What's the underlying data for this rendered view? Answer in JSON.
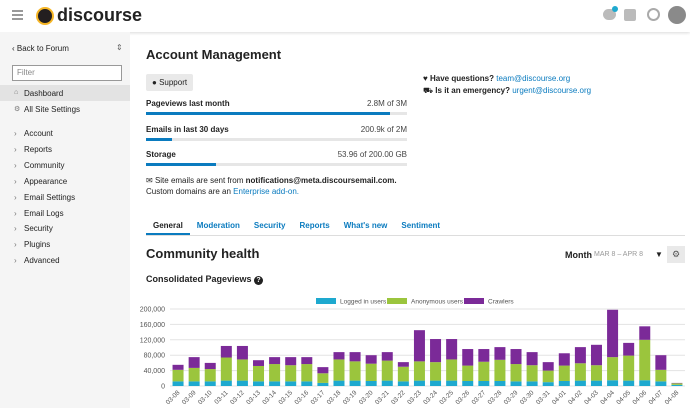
{
  "header": {
    "brand": "discourse"
  },
  "sidebar": {
    "back": "Back to Forum",
    "filter_placeholder": "Filter",
    "top_items": [
      "Dashboard",
      "All Site Settings"
    ],
    "items": [
      "Account",
      "Reports",
      "Community",
      "Appearance",
      "Email Settings",
      "Email Logs",
      "Security",
      "Plugins",
      "Advanced"
    ]
  },
  "account": {
    "title": "Account Management",
    "support": "Support",
    "questions": {
      "label": "Have questions?",
      "email": "team@discourse.org"
    },
    "emergency": {
      "label": "Is it an emergency?",
      "email": "urgent@discourse.org"
    },
    "meters": [
      {
        "name": "Pageviews last month",
        "label": "2.8M of 3M",
        "value": 2800000,
        "limit": 3000000
      },
      {
        "name": "Emails in last 30 days",
        "label": "200.9k of 2M",
        "value": 200900,
        "limit": 2000000
      },
      {
        "name": "Storage",
        "label": "53.96 of 200.00 GB",
        "value": 53.96,
        "limit": 200
      }
    ],
    "email_note": {
      "prefix": "Site emails are sent from",
      "address": "notifications@meta.discoursemail.com.",
      "line2": "Custom domains are an",
      "link": "Enterprise add-on."
    }
  },
  "tabs": [
    "General",
    "Moderation",
    "Security",
    "Reports",
    "What's new",
    "Sentiment"
  ],
  "health": {
    "title": "Community health",
    "period": "Month",
    "range": "MAR 8 – APR 8"
  },
  "chart_data": {
    "type": "bar",
    "stacked": true,
    "title": "Consolidated Pageviews",
    "categories": [
      "03-08",
      "03-09",
      "03-10",
      "03-11",
      "03-12",
      "03-13",
      "03-14",
      "03-15",
      "03-16",
      "03-17",
      "03-18",
      "03-19",
      "03-20",
      "03-21",
      "03-22",
      "03-23",
      "03-24",
      "03-25",
      "03-26",
      "03-27",
      "03-28",
      "03-29",
      "03-30",
      "03-31",
      "04-01",
      "04-02",
      "04-03",
      "04-04",
      "04-05",
      "04-06",
      "04-07",
      "04-08"
    ],
    "series": [
      {
        "name": "Logged in users",
        "color": "#1ea9cf",
        "values": [
          12000,
          12000,
          12000,
          14000,
          14000,
          12000,
          12000,
          12000,
          12000,
          8000,
          14000,
          14000,
          13000,
          14000,
          12000,
          14000,
          14000,
          14000,
          13000,
          13000,
          13000,
          12000,
          12000,
          10000,
          13000,
          14000,
          14000,
          15000,
          14000,
          15000,
          12000,
          3000
        ]
      },
      {
        "name": "Anonymous users",
        "color": "#9bc53d",
        "values": [
          30000,
          35000,
          32000,
          60000,
          55000,
          40000,
          45000,
          42000,
          45000,
          25000,
          55000,
          50000,
          45000,
          52000,
          38000,
          50000,
          48000,
          55000,
          40000,
          50000,
          55000,
          45000,
          42000,
          30000,
          40000,
          45000,
          40000,
          60000,
          65000,
          105000,
          30000,
          4000
        ]
      },
      {
        "name": "Crawlers",
        "color": "#7b2a98",
        "values": [
          13000,
          28000,
          16000,
          30000,
          35000,
          15000,
          18000,
          21000,
          18000,
          16000,
          19000,
          24000,
          22000,
          22000,
          12000,
          81000,
          60000,
          53000,
          43000,
          33000,
          33000,
          39000,
          34000,
          22000,
          32000,
          42000,
          53000,
          123000,
          33000,
          35000,
          38000,
          1000
        ]
      }
    ],
    "ylim": [
      0,
      200000
    ],
    "yticks": [
      0,
      {
        "value": 40000,
        "label": "40,000"
      },
      {
        "value": 80000,
        "label": "80,000"
      },
      {
        "value": 120000,
        "label": "120,000"
      },
      {
        "value": 160000,
        "label": "160,000"
      },
      {
        "value": 200000,
        "label": "200,000"
      }
    ],
    "grid": true,
    "legend": "top"
  }
}
